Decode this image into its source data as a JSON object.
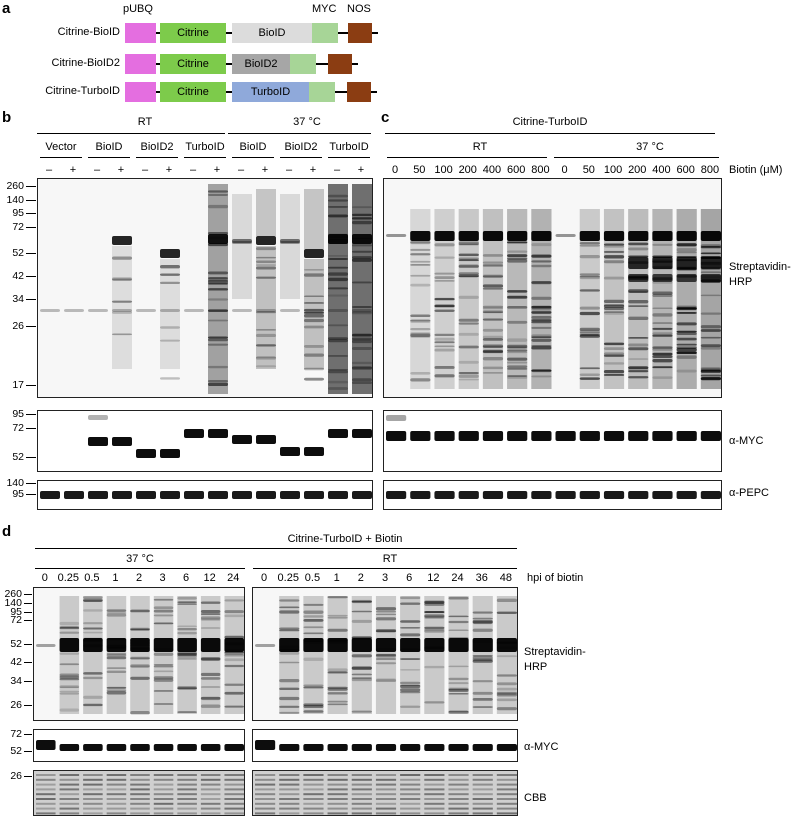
{
  "panel_labels": {
    "a": "a",
    "b": "b",
    "c": "c",
    "d": "d"
  },
  "panel_a": {
    "element_labels": {
      "pubq": "pUBQ",
      "myc": "MYC",
      "nos": "NOS"
    },
    "constructs": [
      {
        "name": "Citrine-BioID",
        "citrine": "Citrine",
        "biotin_ligase": "BioID"
      },
      {
        "name": "Citrine-BioID2",
        "citrine": "Citrine",
        "biotin_ligase": "BioID2"
      },
      {
        "name": "Citrine-TurboID",
        "citrine": "Citrine",
        "biotin_ligase": "TurboID"
      }
    ],
    "colors": {
      "pubq": "#e46ee0",
      "citrine": "#7dcb4b",
      "bioid": "#dcdcdc",
      "bioid2": "#a6a6a6",
      "turboid": "#8fa9da",
      "myc": "#a7d597",
      "nos": "#8b3d12"
    }
  },
  "panel_b": {
    "conditions": [
      "RT",
      "37 °C"
    ],
    "groups": [
      "Vector",
      "BioID",
      "BioID2",
      "TurboID",
      "BioID",
      "BioID2",
      "TurboID"
    ],
    "lane_signs": [
      "–",
      "+",
      "–",
      "+",
      "–",
      "+",
      "–",
      "+",
      "–",
      "+",
      "–",
      "+",
      "–",
      "+"
    ],
    "mw_main": [
      "260",
      "140",
      "95",
      "72",
      "52",
      "42",
      "34",
      "26",
      "17"
    ],
    "mw_myc": [
      "95",
      "72",
      "52"
    ],
    "mw_pepc": [
      "140",
      "95"
    ]
  },
  "panel_c": {
    "title": "Citrine-TurboID",
    "conditions": [
      "RT",
      "37 °C"
    ],
    "biotin_concentrations": [
      "0",
      "50",
      "100",
      "200",
      "400",
      "600",
      "800",
      "0",
      "50",
      "100",
      "200",
      "400",
      "600",
      "800"
    ],
    "biotin_label": "Biotin (μM)"
  },
  "detection_labels": {
    "streptavidin": "Streptavidin-\nHRP",
    "myc": "α-MYC",
    "pepc": "α-PEPC",
    "cbb": "CBB"
  },
  "panel_d": {
    "title": "Citrine-TurboID + Biotin",
    "conditions": [
      "37 °C",
      "RT"
    ],
    "timepoints_37": [
      "0",
      "0.25",
      "0.5",
      "1",
      "2",
      "3",
      "6",
      "12",
      "24"
    ],
    "timepoints_rt": [
      "0",
      "0.25",
      "0.5",
      "1",
      "2",
      "3",
      "6",
      "12",
      "24",
      "36",
      "48"
    ],
    "time_label": "hpi of biotin",
    "mw_main": [
      "260",
      "140",
      "95",
      "72",
      "52",
      "42",
      "34",
      "26"
    ],
    "mw_myc": [
      "72",
      "52"
    ],
    "mw_cbb": [
      "26"
    ]
  }
}
